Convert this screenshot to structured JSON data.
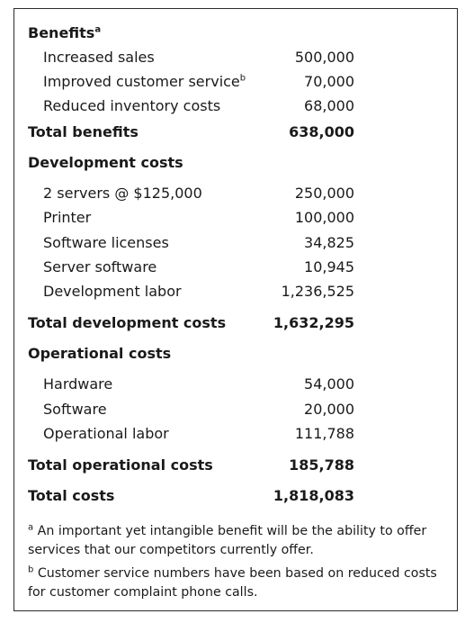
{
  "benefits": {
    "heading": "Benefits",
    "heading_note": "a",
    "items": [
      {
        "label": "Increased sales",
        "note": "",
        "value": "500,000"
      },
      {
        "label": "Improved customer service",
        "note": "b",
        "value": "70,000"
      },
      {
        "label": "Reduced inventory costs",
        "note": "",
        "value": "68,000"
      }
    ],
    "total_label": "Total benefits",
    "total_value": "638,000"
  },
  "development": {
    "heading": "Development costs",
    "items": [
      {
        "label": "2 servers @ $125,000",
        "value": "250,000"
      },
      {
        "label": "Printer",
        "value": "100,000"
      },
      {
        "label": "Software licenses",
        "value": "34,825"
      },
      {
        "label": "Server software",
        "value": "10,945"
      },
      {
        "label": "Development labor",
        "value": "1,236,525"
      }
    ],
    "total_label": "Total development costs",
    "total_value": "1,632,295"
  },
  "operational": {
    "heading": "Operational costs",
    "items": [
      {
        "label": "Hardware",
        "value": "54,000"
      },
      {
        "label": "Software",
        "value": "20,000"
      },
      {
        "label": "Operational labor",
        "value": "111,788"
      }
    ],
    "total_label": "Total operational costs",
    "total_value": "185,788"
  },
  "total_costs": {
    "label": "Total costs",
    "value": "1,818,083"
  },
  "footnotes": [
    {
      "mark": "a",
      "text": "An important yet intangible benefit will be the ability to offer services that our competitors currently offer."
    },
    {
      "mark": "b",
      "text": "Customer service numbers have been based on reduced costs for customer complaint phone calls."
    }
  ]
}
